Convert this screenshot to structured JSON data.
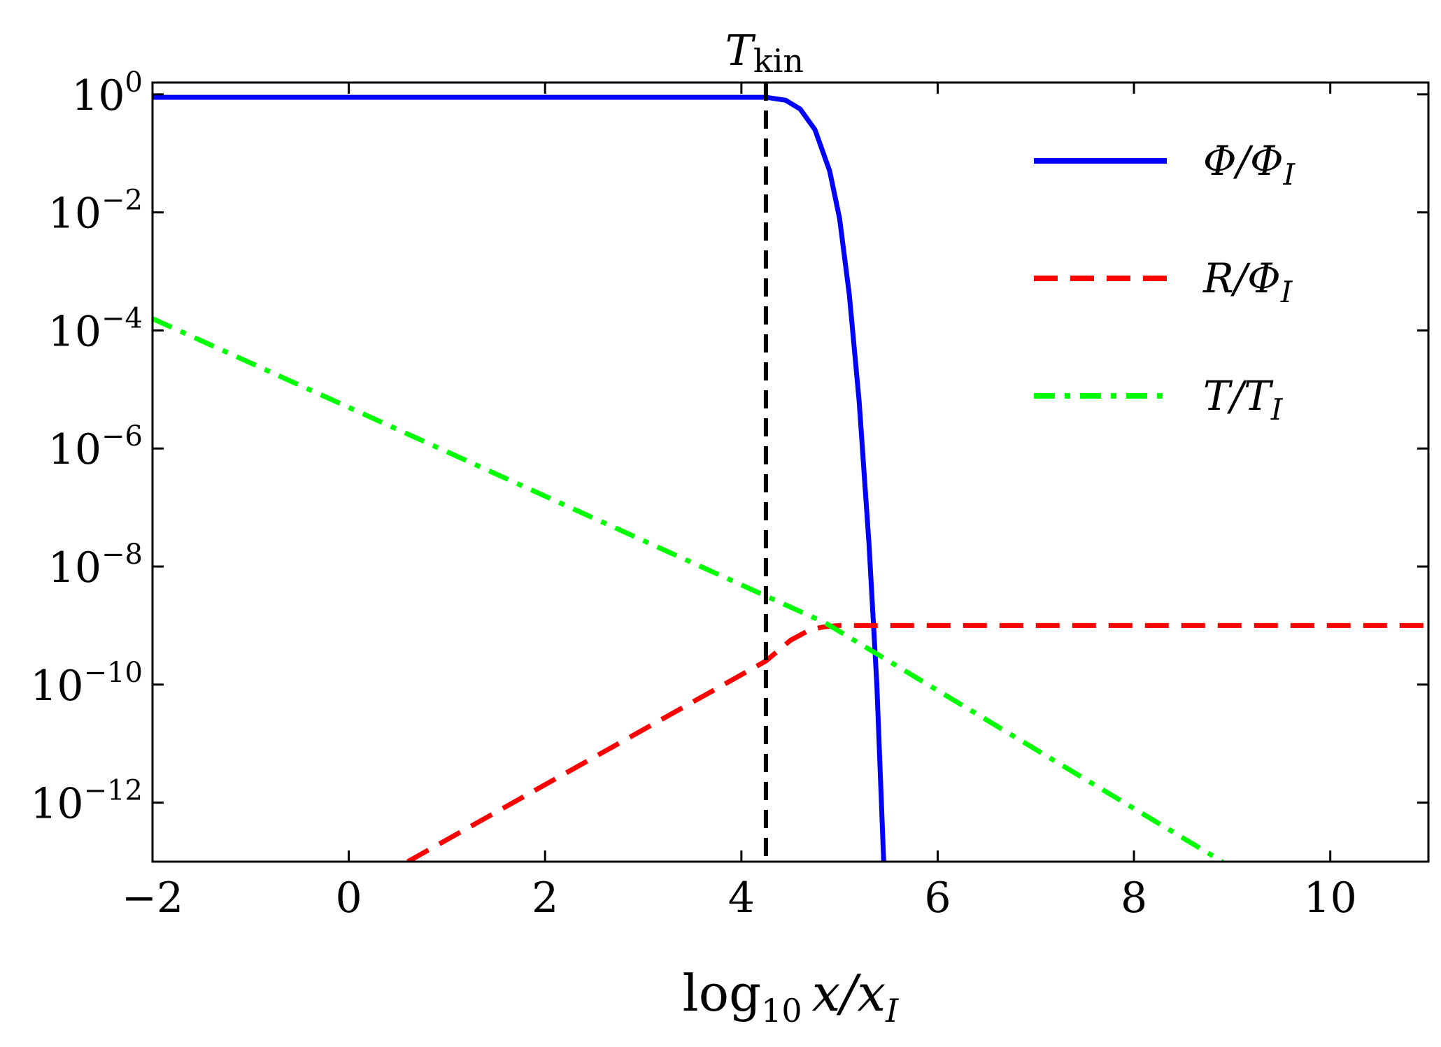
{
  "chart_data": {
    "type": "line",
    "xlabel": "log₁₀ x/x_I",
    "ylabel": "",
    "xlim": [
      -2,
      11
    ],
    "ylim_log10": [
      -13,
      0.2
    ],
    "yscale": "log",
    "x_ticks": [
      -2,
      0,
      2,
      4,
      6,
      8,
      10
    ],
    "x_tick_labels": [
      "−2",
      "0",
      "2",
      "4",
      "6",
      "8",
      "10"
    ],
    "y_ticks_log10": [
      0,
      -2,
      -4,
      -6,
      -8,
      -10,
      -12
    ],
    "y_tick_labels": [
      {
        "base": "10",
        "exp": "0"
      },
      {
        "base": "10",
        "exp": "−2"
      },
      {
        "base": "10",
        "exp": "−4"
      },
      {
        "base": "10",
        "exp": "−6"
      },
      {
        "base": "10",
        "exp": "−8"
      },
      {
        "base": "10",
        "exp": "−10"
      },
      {
        "base": "10",
        "exp": "−12"
      }
    ],
    "grid": false,
    "legend_position": "top-right",
    "series": [
      {
        "name": "Φ/Φ_I",
        "label_main": "Φ/Φ",
        "label_sub": "I",
        "color": "#0000ff",
        "style": "solid",
        "x": [
          -2,
          4.25,
          4.45,
          4.6,
          4.75,
          4.9,
          5.0,
          5.1,
          5.2,
          5.3,
          5.38,
          5.45
        ],
        "y_log10": [
          -0.05,
          -0.05,
          -0.1,
          -0.25,
          -0.6,
          -1.3,
          -2.1,
          -3.4,
          -5.2,
          -7.6,
          -10.0,
          -13.0
        ]
      },
      {
        "name": "R/Φ_I",
        "label_main": "R/Φ",
        "label_sub": "I",
        "color": "#ff0000",
        "style": "dashed",
        "x": [
          0.6,
          4.25,
          4.5,
          4.7,
          4.85,
          5.0,
          11
        ],
        "y_log10": [
          -13.0,
          -9.6,
          -9.25,
          -9.07,
          -9.02,
          -9.0,
          -9.0
        ]
      },
      {
        "name": "T/T_I",
        "label_main": "T/T",
        "label_sub": "I",
        "color": "#00ff00",
        "style": "dashdot",
        "x": [
          -2,
          4.85,
          8.9
        ],
        "y_log10": [
          -3.8,
          -8.95,
          -13.0
        ]
      }
    ],
    "vline": {
      "x": 4.25,
      "color": "#000000",
      "style": "dashed",
      "label_main": "T",
      "label_sub": "kin"
    }
  }
}
